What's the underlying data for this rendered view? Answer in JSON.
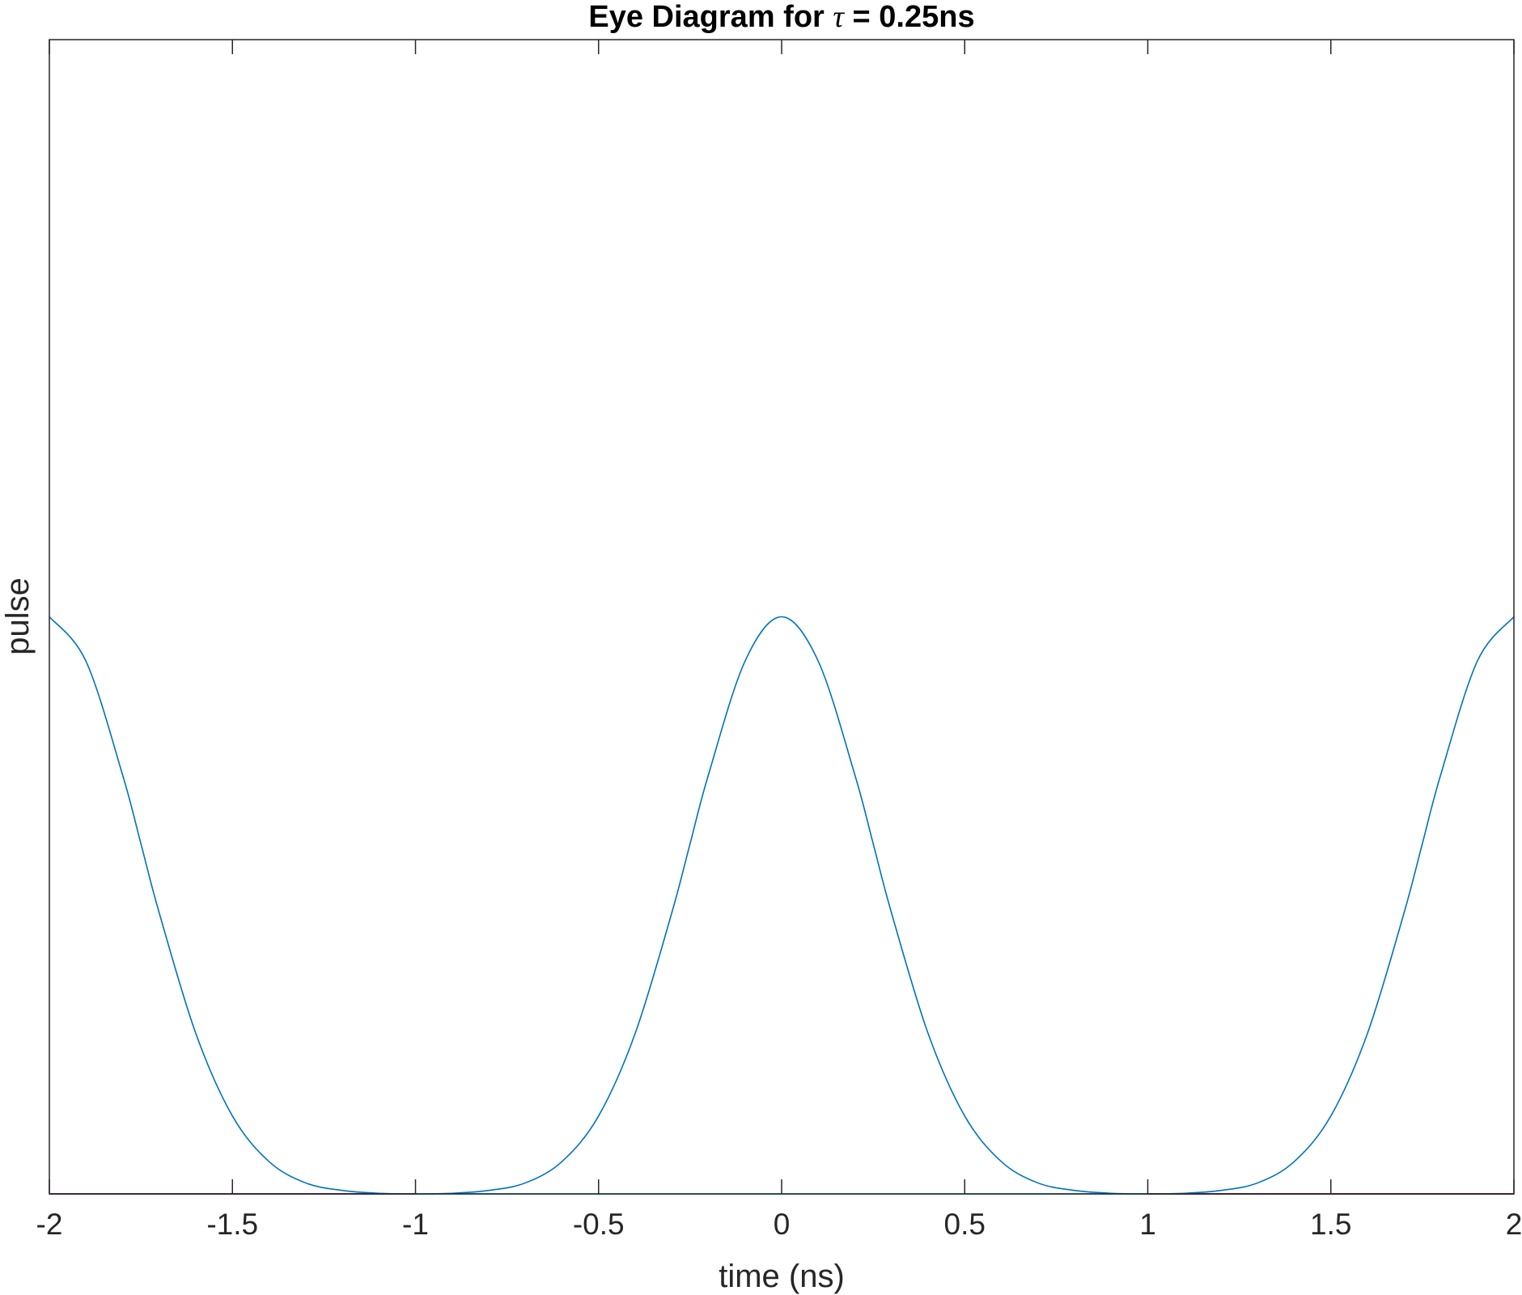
{
  "chart_data": {
    "type": "line",
    "title": "Eye Diagram for τ = 0.25ns",
    "title_parts": {
      "prefix": "Eye Diagram for ",
      "symbol": "τ",
      "suffix": " = 0.25ns"
    },
    "xlabel": "time (ns)",
    "ylabel": "pulse",
    "xlim": [
      -2,
      2
    ],
    "ylim": [
      0,
      2
    ],
    "xticks": [
      -2,
      -1.5,
      -1,
      -0.5,
      0,
      0.5,
      1,
      1.5,
      2
    ],
    "xtick_labels": [
      "-2",
      "-1.5",
      "-1",
      "-0.5",
      "0",
      "0.5",
      "1",
      "1.5",
      "2"
    ],
    "yticks": [],
    "grid": false,
    "box": true,
    "series": [
      {
        "color": "#0072BD",
        "x": [
          -2,
          -1.9,
          -1.8,
          -1.75,
          -1.7,
          -1.6,
          -1.5,
          -1.4,
          -1.3,
          -1.2,
          -1.1,
          -1,
          -0.9,
          -0.8,
          -0.7,
          -0.6,
          -0.5,
          -0.4,
          -0.3,
          -0.25,
          -0.2,
          -0.1,
          0,
          0.1,
          0.2,
          0.25,
          0.3,
          0.4,
          0.5,
          0.6,
          0.7,
          0.8,
          0.9,
          1,
          1.1,
          1.2,
          1.3,
          1.4,
          1.5,
          1.6,
          1.7,
          1.75,
          1.8,
          1.9,
          2
        ],
        "y": [
          1,
          0.923,
          0.726,
          0.607,
          0.487,
          0.278,
          0.135,
          0.056,
          0.019,
          0.006,
          0.001,
          0,
          0.001,
          0.006,
          0.019,
          0.056,
          0.135,
          0.278,
          0.487,
          0.607,
          0.726,
          0.923,
          1,
          0.923,
          0.726,
          0.607,
          0.487,
          0.278,
          0.135,
          0.056,
          0.019,
          0.006,
          0.001,
          0,
          0.001,
          0.006,
          0.019,
          0.056,
          0.135,
          0.278,
          0.487,
          0.607,
          0.726,
          0.923,
          1
        ]
      },
      {
        "color": "#7E2F8E",
        "x": [
          -2,
          -1
        ],
        "y": [
          0,
          0
        ]
      },
      {
        "color": "#4DBEEE",
        "x": [
          -1,
          1
        ],
        "y": [
          0,
          0
        ]
      },
      {
        "color": "#A2142F",
        "x": [
          1,
          2
        ],
        "y": [
          0,
          0
        ]
      }
    ]
  }
}
